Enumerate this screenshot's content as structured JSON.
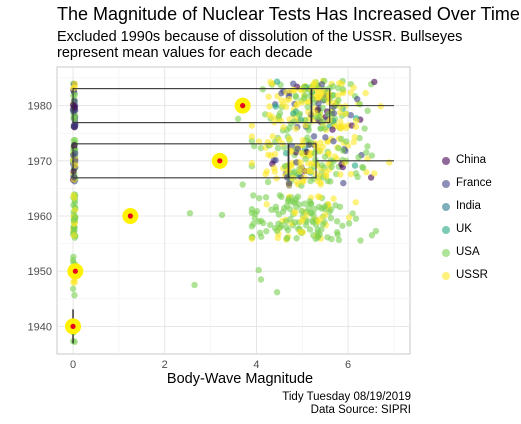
{
  "title": "The Magnitude of Nuclear Tests Has Increased Over Time",
  "subtitle": "Excluded 1990s because of dissolution of the USSR. Bullseyes represent mean values for each decade",
  "caption": {
    "line1": "Tidy Tuesday 08/19/2019",
    "line2": "Data Source: SIPRI"
  },
  "chart_data": {
    "type": "scatter",
    "xlabel": "Body-Wave Magnitude",
    "ylabel": "",
    "xlim": [
      -0.35,
      7.35
    ],
    "ylim": [
      1935,
      1987
    ],
    "x_ticks": [
      0,
      2,
      4,
      6
    ],
    "y_ticks": [
      1940,
      1950,
      1960,
      1970,
      1980
    ],
    "grid": true,
    "legend_position": "right",
    "series": [
      {
        "name": "China",
        "color": "#440154"
      },
      {
        "name": "France",
        "color": "#414487"
      },
      {
        "name": "India",
        "color": "#2a788e"
      },
      {
        "name": "UK",
        "color": "#22a884"
      },
      {
        "name": "USA",
        "color": "#7ad151"
      },
      {
        "name": "USSR",
        "color": "#fde725"
      }
    ],
    "decade_means": [
      {
        "decade": 1940,
        "mean": 0.0
      },
      {
        "decade": 1950,
        "mean": 0.05
      },
      {
        "decade": 1960,
        "mean": 1.25
      },
      {
        "decade": 1970,
        "mean": 3.2
      },
      {
        "decade": 1980,
        "mean": 3.7
      }
    ],
    "boxplots": [
      {
        "decade": 1940,
        "min": 0.0,
        "q1": 0.0,
        "median": 0.0,
        "q3": 0.0,
        "max": 0.0
      },
      {
        "decade": 1970,
        "min": 0.0,
        "q1": 0.0,
        "median": 4.7,
        "q3": 5.3,
        "max": 7.0
      },
      {
        "decade": 1980,
        "min": 0.0,
        "q1": 0.0,
        "median": 5.2,
        "q3": 5.6,
        "max": 7.0
      }
    ]
  }
}
